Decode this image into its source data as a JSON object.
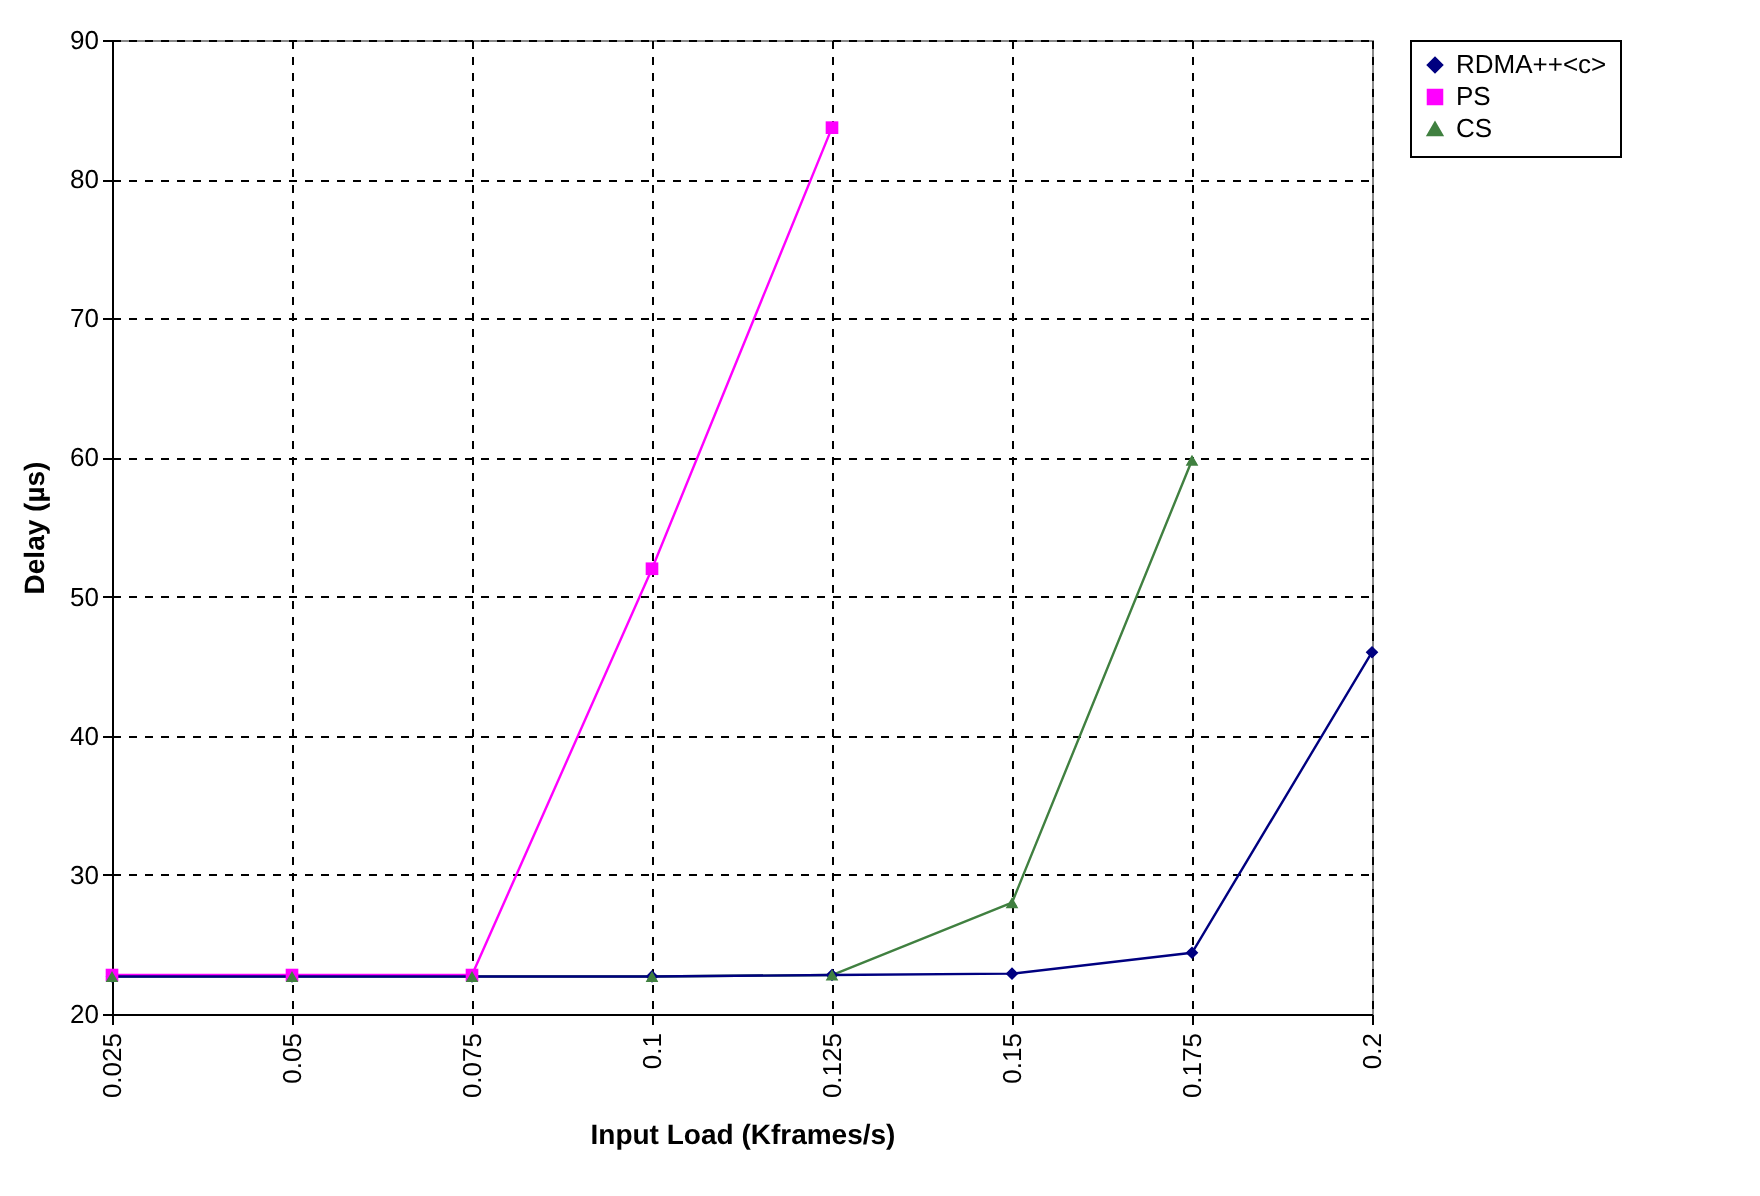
{
  "chart_data": {
    "type": "line",
    "xlabel": "Input Load (Kframes/s)",
    "ylabel": "Delay (µs)",
    "x": [
      0.025,
      0.05,
      0.075,
      0.1,
      0.125,
      0.15,
      0.175,
      0.2
    ],
    "xlim": [
      0.025,
      0.2
    ],
    "xticks": [
      0.025,
      0.05,
      0.075,
      0.1,
      0.125,
      0.15,
      0.175,
      0.2
    ],
    "ylim": [
      20,
      90
    ],
    "yticks": [
      20,
      30,
      40,
      50,
      60,
      70,
      80,
      90
    ],
    "grid": true,
    "legend": "right",
    "series": [
      {
        "name": "RDMA++<c>",
        "color": "#000080",
        "marker": "diamond",
        "values": [
          22.7,
          22.7,
          22.7,
          22.7,
          22.8,
          22.9,
          24.4,
          46.0
        ]
      },
      {
        "name": "PS",
        "color": "#ff00ff",
        "marker": "square",
        "values": [
          22.8,
          22.8,
          22.8,
          52.0,
          83.7,
          null,
          null,
          null
        ]
      },
      {
        "name": "CS",
        "color": "#408040",
        "marker": "triangle",
        "values": [
          22.7,
          22.7,
          22.7,
          22.7,
          22.8,
          28.0,
          59.8,
          null
        ]
      }
    ]
  }
}
